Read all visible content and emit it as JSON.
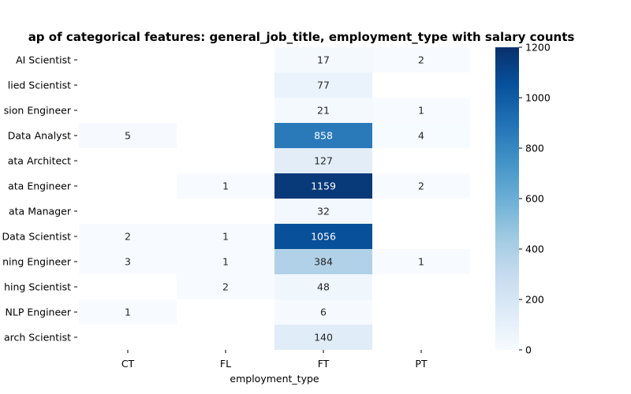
{
  "chart_data": {
    "type": "heatmap",
    "title": "ap of categorical features: general_job_title, employment_type with salary counts",
    "xlabel": "employment_type",
    "ylabel": "",
    "x_categories": [
      "CT",
      "FL",
      "FT",
      "PT"
    ],
    "y_categories": [
      "AI Scientist",
      "lied Scientist",
      "sion Engineer",
      "Data Analyst",
      "ata Architect",
      "ata Engineer",
      "ata Manager",
      "Data Scientist",
      "ning Engineer",
      "hing Scientist",
      "NLP Engineer",
      "arch Scientist"
    ],
    "values": [
      [
        null,
        null,
        17,
        2
      ],
      [
        null,
        null,
        77,
        null
      ],
      [
        null,
        null,
        21,
        1
      ],
      [
        5,
        null,
        858,
        4
      ],
      [
        null,
        null,
        127,
        null
      ],
      [
        null,
        1,
        1159,
        2
      ],
      [
        null,
        null,
        32,
        null
      ],
      [
        2,
        1,
        1056,
        null
      ],
      [
        3,
        1,
        384,
        1
      ],
      [
        null,
        2,
        48,
        null
      ],
      [
        1,
        null,
        6,
        null
      ],
      [
        null,
        null,
        140,
        null
      ]
    ],
    "colorbar": {
      "colormap": "Blues",
      "vmin": 0,
      "vmax": 1200,
      "ticks": [
        0,
        200,
        400,
        600,
        800,
        1000,
        1200
      ]
    },
    "grid": false
  }
}
